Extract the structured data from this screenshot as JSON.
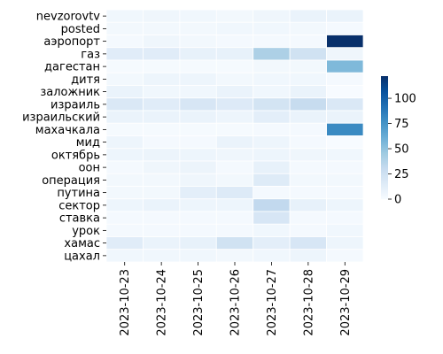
{
  "chart_data": {
    "type": "heatmap",
    "title": "",
    "xlabel": "",
    "ylabel": "",
    "x_categories": [
      "2023-10-23",
      "2023-10-24",
      "2023-10-25",
      "2023-10-26",
      "2023-10-27",
      "2023-10-28",
      "2023-10-29"
    ],
    "y_categories": [
      "nevzorovtv",
      "posted",
      "аэропорт",
      "газ",
      "дагестан",
      "дитя",
      "заложник",
      "израиль",
      "израильский",
      "махачкала",
      "мид",
      "октябрь",
      "оон",
      "операция",
      "путина",
      "сектор",
      "ставка",
      "урок",
      "хамас",
      "цахал"
    ],
    "values": [
      [
        4,
        5,
        4,
        3,
        5,
        8,
        8
      ],
      [
        3,
        3,
        3,
        4,
        4,
        3,
        2
      ],
      [
        2,
        5,
        3,
        2,
        2,
        2,
        122
      ],
      [
        14,
        14,
        10,
        10,
        40,
        24,
        5
      ],
      [
        1,
        1,
        1,
        1,
        3,
        3,
        55
      ],
      [
        3,
        6,
        6,
        3,
        4,
        4,
        2
      ],
      [
        8,
        4,
        4,
        8,
        4,
        8,
        0
      ],
      [
        18,
        14,
        20,
        16,
        22,
        30,
        18
      ],
      [
        8,
        8,
        8,
        6,
        12,
        8,
        8
      ],
      [
        1,
        1,
        1,
        1,
        2,
        2,
        80
      ],
      [
        6,
        2,
        2,
        8,
        6,
        2,
        0
      ],
      [
        6,
        7,
        6,
        5,
        6,
        5,
        4
      ],
      [
        2,
        5,
        7,
        2,
        10,
        2,
        2
      ],
      [
        3,
        3,
        5,
        3,
        15,
        3,
        3
      ],
      [
        3,
        3,
        12,
        16,
        2,
        2,
        2
      ],
      [
        6,
        8,
        6,
        6,
        32,
        10,
        6
      ],
      [
        2,
        2,
        2,
        2,
        20,
        2,
        2
      ],
      [
        2,
        2,
        2,
        2,
        4,
        2,
        4
      ],
      [
        14,
        8,
        10,
        24,
        12,
        20,
        6
      ],
      [
        4,
        4,
        4,
        3,
        4,
        6,
        2
      ]
    ],
    "colorbar": {
      "min": 0,
      "max": 122,
      "ticks": [
        0,
        25,
        50,
        75,
        100
      ],
      "colormap": "Blues"
    }
  }
}
